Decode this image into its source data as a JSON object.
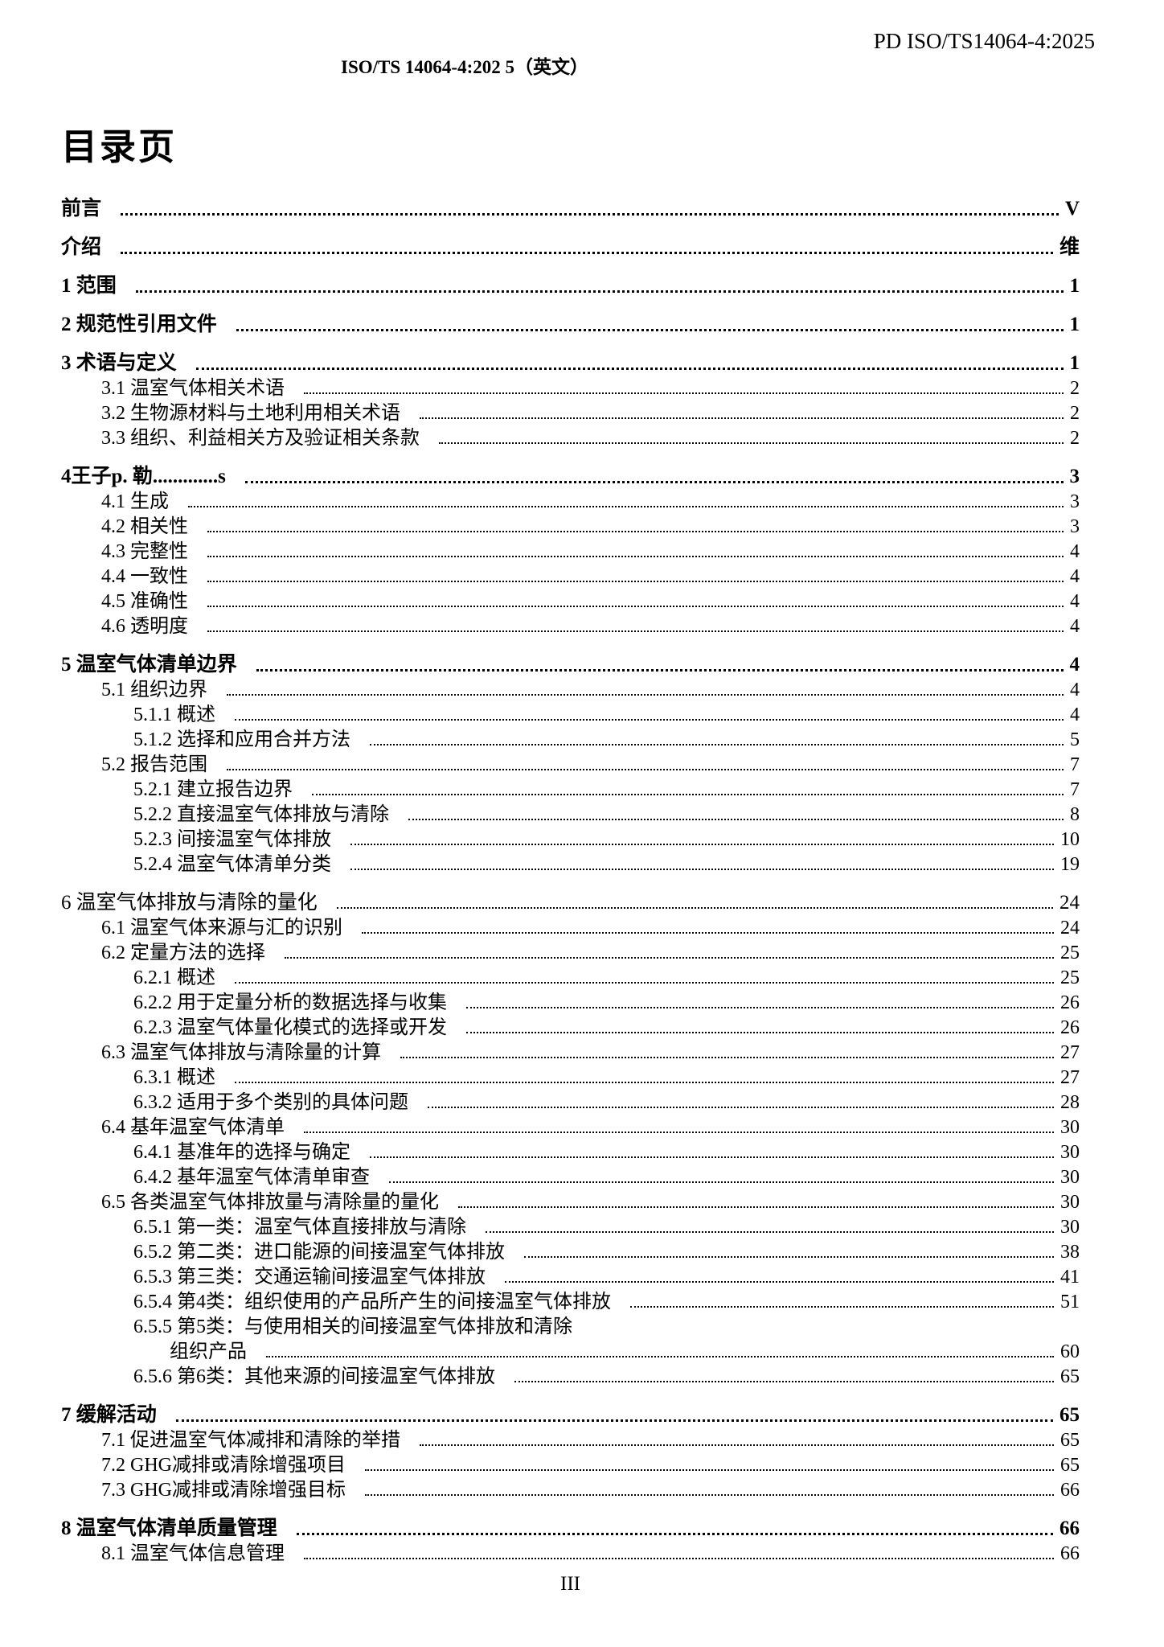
{
  "page": {
    "header_right": "PD ISO/TS14064-4:2025",
    "header_center": "ISO/TS 14064-4:202 5（英文）",
    "title": "目录页",
    "footer_page_number": "III"
  },
  "colors": {
    "text": "#000000",
    "background": "#ffffff"
  },
  "toc": {
    "entries": [
      {
        "label": "前言",
        "page": "V",
        "level": 1,
        "bold": true,
        "leader": true
      },
      {
        "label": "介绍",
        "page": "维",
        "level": 1,
        "bold": true,
        "leader": true
      },
      {
        "label": "1 范围",
        "page": "1",
        "level": 1,
        "bold": true,
        "leader": true
      },
      {
        "label": "2 规范性引用文件",
        "page": "1",
        "level": 1,
        "bold": true,
        "leader": true
      },
      {
        "label": "3 术语与定义",
        "page": "1",
        "level": 1,
        "bold": true,
        "leader": true
      },
      {
        "label": "3.1 温室气体相关术语",
        "page": "2",
        "level": 2,
        "bold": false,
        "leader": true
      },
      {
        "label": "3.2 生物源材料与土地利用相关术语",
        "page": "2",
        "level": 2,
        "bold": false,
        "leader": true
      },
      {
        "label": "3.3 组织、利益相关方及验证相关条款",
        "page": "2",
        "level": 2,
        "bold": false,
        "leader": true
      },
      {
        "label": "4王子p. 勒.............s",
        "page": "3",
        "level": 1,
        "bold": true,
        "leader": true
      },
      {
        "label": "4.1 生成",
        "page": "3",
        "level": 2,
        "bold": false,
        "leader": true
      },
      {
        "label": "4.2 相关性",
        "page": "3",
        "level": 2,
        "bold": false,
        "leader": true
      },
      {
        "label": "4.3 完整性",
        "page": "4",
        "level": 2,
        "bold": false,
        "leader": true
      },
      {
        "label": "4.4 一致性",
        "page": "4",
        "level": 2,
        "bold": false,
        "leader": true
      },
      {
        "label": "4.5 准确性",
        "page": "4",
        "level": 2,
        "bold": false,
        "leader": true
      },
      {
        "label": "4.6 透明度",
        "page": "4",
        "level": 2,
        "bold": false,
        "leader": true
      },
      {
        "label": "5 温室气体清单边界",
        "page": "4",
        "level": 1,
        "bold": true,
        "leader": true
      },
      {
        "label": "5.1 组织边界",
        "page": "4",
        "level": 2,
        "bold": false,
        "leader": true
      },
      {
        "label": "5.1.1 概述",
        "page": "4",
        "level": 3,
        "bold": false,
        "leader": true
      },
      {
        "label": "5.1.2 选择和应用合并方法",
        "page": "5",
        "level": 3,
        "bold": false,
        "leader": true
      },
      {
        "label": "5.2 报告范围",
        "page": "7",
        "level": 2,
        "bold": false,
        "leader": true
      },
      {
        "label": "5.2.1 建立报告边界",
        "page": "7",
        "level": 3,
        "bold": false,
        "leader": true
      },
      {
        "label": "5.2.2 直接温室气体排放与清除",
        "page": "8",
        "level": 3,
        "bold": false,
        "leader": true
      },
      {
        "label": "5.2.3 间接温室气体排放",
        "page": "10",
        "level": 3,
        "bold": false,
        "leader": true
      },
      {
        "label": "5.2.4 温室气体清单分类",
        "page": "19",
        "level": 3,
        "bold": false,
        "leader": true
      },
      {
        "label": "6 温室气体排放与清除的量化",
        "page": "24",
        "level": 1,
        "bold": false,
        "leader": true
      },
      {
        "label": "6.1 温室气体来源与汇的识别",
        "page": "24",
        "level": 2,
        "bold": false,
        "leader": true
      },
      {
        "label": "6.2 定量方法的选择",
        "page": "25",
        "level": 2,
        "bold": false,
        "leader": true
      },
      {
        "label": "6.2.1 概述",
        "page": "25",
        "level": 3,
        "bold": false,
        "leader": true
      },
      {
        "label": "6.2.2 用于定量分析的数据选择与收集",
        "page": "26",
        "level": 3,
        "bold": false,
        "leader": true
      },
      {
        "label": "6.2.3 温室气体量化模式的选择或开发",
        "page": "26",
        "level": 3,
        "bold": false,
        "leader": true
      },
      {
        "label": "6.3 温室气体排放与清除量的计算",
        "page": "27",
        "level": 2,
        "bold": false,
        "leader": true
      },
      {
        "label": "6.3.1 概述",
        "page": "27",
        "level": 3,
        "bold": false,
        "leader": true
      },
      {
        "label": "6.3.2 适用于多个类别的具体问题",
        "page": "28",
        "level": 3,
        "bold": false,
        "leader": true
      },
      {
        "label": "6.4 基年温室气体清单",
        "page": "30",
        "level": 2,
        "bold": false,
        "leader": true
      },
      {
        "label": "6.4.1 基准年的选择与确定",
        "page": "30",
        "level": 3,
        "bold": false,
        "leader": true
      },
      {
        "label": "6.4.2 基年温室气体清单审查",
        "page": "30",
        "level": 3,
        "bold": false,
        "leader": true
      },
      {
        "label": "6.5 各类温室气体排放量与清除量的量化",
        "page": "30",
        "level": 2,
        "bold": false,
        "leader": true
      },
      {
        "label": "6.5.1 第一类：温室气体直接排放与清除",
        "page": "30",
        "level": 3,
        "bold": false,
        "leader": true
      },
      {
        "label": "6.5.2 第二类：进口能源的间接温室气体排放",
        "page": "38",
        "level": 3,
        "bold": false,
        "leader": true
      },
      {
        "label": "6.5.3 第三类：交通运输间接温室气体排放",
        "page": "41",
        "level": 3,
        "bold": false,
        "leader": true
      },
      {
        "label": "6.5.4 第4类：组织使用的产品所产生的间接温室气体排放",
        "page": "51",
        "level": 3,
        "bold": false,
        "leader": true
      },
      {
        "label": "6.5.5 第5类：与使用相关的间接温室气体排放和清除",
        "page": "",
        "level": 3,
        "bold": false,
        "leader": false
      },
      {
        "label": "组织产品",
        "page": "60",
        "level": 4,
        "bold": false,
        "leader": true
      },
      {
        "label": "6.5.6 第6类：其他来源的间接温室气体排放",
        "page": "65",
        "level": 3,
        "bold": false,
        "leader": true
      },
      {
        "label": "7 缓解活动",
        "page": "65",
        "level": 1,
        "bold": true,
        "leader": true
      },
      {
        "label": "7.1 促进温室气体减排和清除的举措",
        "page": "65",
        "level": 2,
        "bold": false,
        "leader": true
      },
      {
        "label": "7.2 GHG减排或清除增强项目",
        "page": "65",
        "level": 2,
        "bold": false,
        "leader": true
      },
      {
        "label": "7.3 GHG减排或清除增强目标",
        "page": "66",
        "level": 2,
        "bold": false,
        "leader": true
      },
      {
        "label": "8 温室气体清单质量管理",
        "page": "66",
        "level": 1,
        "bold": true,
        "leader": true
      },
      {
        "label": "8.1 温室气体信息管理",
        "page": "66",
        "level": 2,
        "bold": false,
        "leader": true
      }
    ]
  }
}
